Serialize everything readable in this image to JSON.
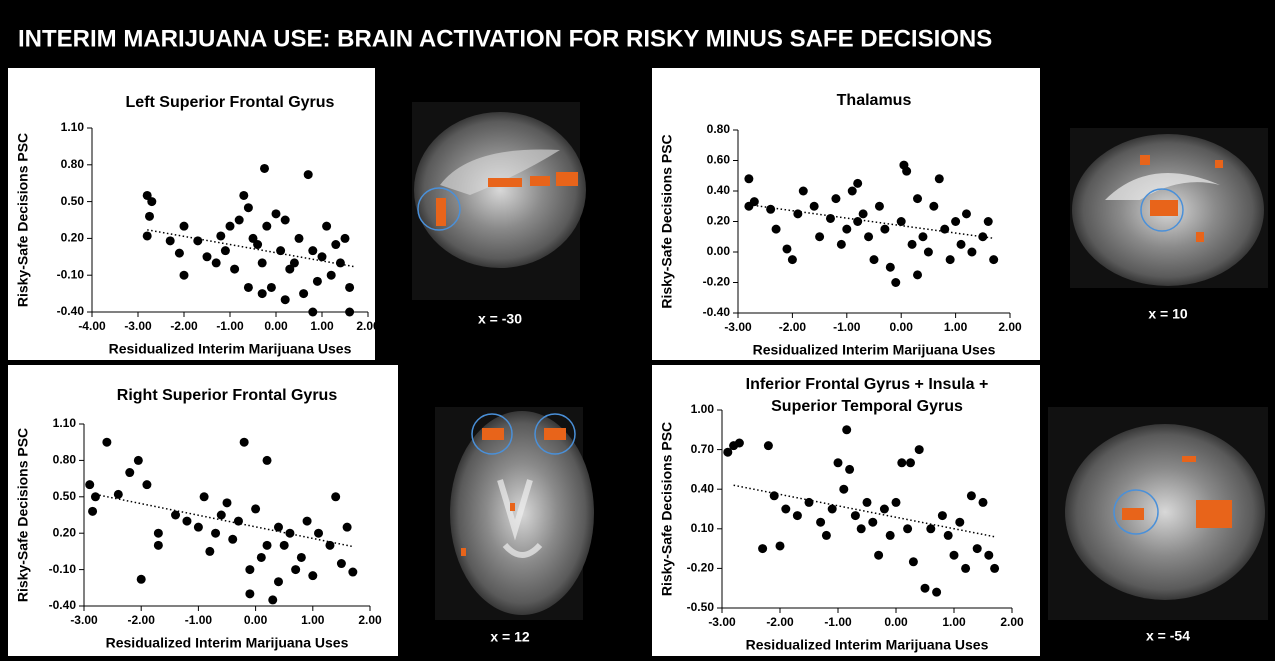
{
  "title": "INTERIM MARIJUANA USE: BRAIN ACTIVATION FOR RISKY MINUS SAFE DECISIONS",
  "chart_data": [
    {
      "type": "scatter",
      "title": "Left Superior Frontal Gyrus",
      "ylabel": "Risky-Safe Decisions PSC",
      "xlabel": "Residualized Interim Marijuana Uses",
      "color": "#000000",
      "xlim": [
        -4,
        2
      ],
      "xticks": [
        {
          "value": -4,
          "label": "-4.00"
        },
        {
          "value": -3,
          "label": "-3.00"
        },
        {
          "value": -2,
          "label": "-2.00"
        },
        {
          "value": -1,
          "label": "-1.00"
        },
        {
          "value": 0,
          "label": "0.00"
        },
        {
          "value": 1,
          "label": "1.00"
        },
        {
          "value": 2,
          "label": "2.00"
        }
      ],
      "ylim": [
        -0.4,
        1.1
      ],
      "yticks": [
        {
          "value": -0.4,
          "label": "-0.40"
        },
        {
          "value": -0.1,
          "label": "-0.10"
        },
        {
          "value": 0.2,
          "label": "0.20"
        },
        {
          "value": 0.5,
          "label": "0.50"
        },
        {
          "value": 0.8,
          "label": "0.80"
        },
        {
          "value": 1.1,
          "label": "1.10"
        }
      ],
      "x": [
        -2.8,
        -2.7,
        -2.8,
        -2.75,
        -2.3,
        -2.1,
        -2.0,
        -2.0,
        -1.7,
        -1.5,
        -1.3,
        -1.2,
        -1.1,
        -1.0,
        -0.9,
        -0.8,
        -0.7,
        -0.6,
        -0.5,
        -0.4,
        -0.3,
        -0.2,
        -0.1,
        0.0,
        0.1,
        0.2,
        0.3,
        0.4,
        0.5,
        0.6,
        0.7,
        0.8,
        0.9,
        1.0,
        1.1,
        1.2,
        1.3,
        1.4,
        1.5,
        1.6,
        -0.25,
        1.6,
        0.8,
        -0.6,
        -0.3,
        0.2
      ],
      "values": [
        0.55,
        0.5,
        0.22,
        0.38,
        0.18,
        0.08,
        0.3,
        -0.1,
        0.18,
        0.05,
        0.0,
        0.22,
        0.1,
        0.3,
        -0.05,
        0.35,
        0.55,
        0.45,
        0.2,
        0.15,
        0.0,
        0.3,
        -0.2,
        0.4,
        0.1,
        0.35,
        -0.05,
        0.0,
        0.2,
        -0.25,
        0.72,
        0.1,
        -0.15,
        0.05,
        0.3,
        -0.1,
        0.15,
        0.0,
        0.2,
        -0.4,
        0.77,
        -0.2,
        -0.4,
        -0.2,
        -0.25,
        -0.3
      ],
      "trendline": {
        "x": [
          -2.8,
          1.7
        ],
        "values": [
          0.27,
          -0.03
        ]
      }
    },
    {
      "type": "scatter",
      "title": "Thalamus",
      "ylabel": "Risky-Safe Decisions PSC",
      "xlabel": "Residualized Interim Marijuana Uses",
      "color": "#000000",
      "xlim": [
        -3,
        2
      ],
      "xticks": [
        {
          "value": -3,
          "label": "-3.00"
        },
        {
          "value": -2,
          "label": "-2.00"
        },
        {
          "value": -1,
          "label": "-1.00"
        },
        {
          "value": 0,
          "label": "0.00"
        },
        {
          "value": 1,
          "label": "1.00"
        },
        {
          "value": 2,
          "label": "2.00"
        }
      ],
      "ylim": [
        -0.4,
        0.8
      ],
      "yticks": [
        {
          "value": -0.4,
          "label": "-0.40"
        },
        {
          "value": -0.2,
          "label": "-0.20"
        },
        {
          "value": 0,
          "label": "0.00"
        },
        {
          "value": 0.2,
          "label": "0.20"
        },
        {
          "value": 0.4,
          "label": "0.40"
        },
        {
          "value": 0.6,
          "label": "0.60"
        },
        {
          "value": 0.8,
          "label": "0.80"
        }
      ],
      "x": [
        -2.8,
        -2.8,
        -2.7,
        -2.4,
        -2.3,
        -2.1,
        -2.0,
        -1.9,
        -1.8,
        -1.6,
        -1.5,
        -1.3,
        -1.2,
        -1.1,
        -1.0,
        -0.9,
        -0.8,
        -0.7,
        -0.6,
        -0.5,
        -0.4,
        -0.3,
        -0.2,
        -0.1,
        0.0,
        0.05,
        0.1,
        0.2,
        0.3,
        0.4,
        0.5,
        0.6,
        0.7,
        0.8,
        0.9,
        1.0,
        1.1,
        1.2,
        1.3,
        1.5,
        1.6,
        1.7,
        -0.8,
        0.3
      ],
      "values": [
        0.48,
        0.3,
        0.33,
        0.28,
        0.15,
        0.02,
        -0.05,
        0.25,
        0.4,
        0.3,
        0.1,
        0.22,
        0.35,
        0.05,
        0.15,
        0.4,
        0.2,
        0.25,
        0.1,
        -0.05,
        0.3,
        0.15,
        -0.1,
        -0.2,
        0.2,
        0.57,
        0.53,
        0.05,
        0.35,
        0.1,
        0.0,
        0.3,
        0.48,
        0.15,
        -0.05,
        0.2,
        0.05,
        0.25,
        0.0,
        0.1,
        0.2,
        -0.05,
        0.45,
        -0.15
      ],
      "trendline": {
        "x": [
          -2.8,
          1.7
        ],
        "values": [
          0.31,
          0.09
        ]
      }
    },
    {
      "type": "scatter",
      "title": "Right Superior Frontal Gyrus",
      "ylabel": "Risky-Safe Decisions PSC",
      "xlabel": "Residualized Interim Marijuana Uses",
      "color": "#000000",
      "xlim": [
        -3,
        2
      ],
      "xticks": [
        {
          "value": -3,
          "label": "-3.00"
        },
        {
          "value": -2,
          "label": "-2.00"
        },
        {
          "value": -1,
          "label": "-1.00"
        },
        {
          "value": 0,
          "label": "0.00"
        },
        {
          "value": 1,
          "label": "1.00"
        },
        {
          "value": 2,
          "label": "2.00"
        }
      ],
      "ylim": [
        -0.4,
        1.1
      ],
      "yticks": [
        {
          "value": -0.4,
          "label": "-0.40"
        },
        {
          "value": -0.1,
          "label": "-0.10"
        },
        {
          "value": 0.2,
          "label": "0.20"
        },
        {
          "value": 0.5,
          "label": "0.50"
        },
        {
          "value": 0.8,
          "label": "0.80"
        },
        {
          "value": 1.1,
          "label": "1.10"
        }
      ],
      "x": [
        -2.9,
        -2.85,
        -2.8,
        -2.6,
        -2.4,
        -2.2,
        -2.05,
        -2.0,
        -1.9,
        -1.7,
        -1.7,
        -1.4,
        -1.2,
        -1.0,
        -0.9,
        -0.8,
        -0.7,
        -0.6,
        -0.5,
        -0.4,
        -0.3,
        -0.2,
        -0.1,
        0.0,
        0.1,
        0.2,
        0.3,
        0.4,
        0.5,
        0.6,
        0.7,
        0.8,
        0.9,
        1.0,
        1.1,
        1.3,
        1.4,
        1.5,
        1.6,
        1.7,
        0.2,
        -0.1,
        0.4
      ],
      "values": [
        0.6,
        0.38,
        0.5,
        0.95,
        0.52,
        0.7,
        0.8,
        -0.18,
        0.6,
        0.1,
        0.2,
        0.35,
        0.3,
        0.25,
        0.5,
        0.05,
        0.2,
        0.35,
        0.45,
        0.15,
        0.3,
        0.95,
        -0.1,
        0.4,
        0.0,
        0.1,
        -0.35,
        0.25,
        0.1,
        0.2,
        -0.1,
        0.0,
        0.3,
        -0.15,
        0.2,
        0.1,
        0.5,
        -0.05,
        0.25,
        -0.12,
        0.8,
        -0.3,
        -0.2
      ],
      "trendline": {
        "x": [
          -2.8,
          1.7
        ],
        "values": [
          0.52,
          0.09
        ]
      }
    },
    {
      "type": "scatter",
      "title": [
        "Inferior Frontal Gyrus + Insula +",
        "Superior Temporal Gyrus"
      ],
      "ylabel": "Risky-Safe Decisions PSC",
      "xlabel": "Residualized Interim Marijuana Uses",
      "color": "#000000",
      "xlim": [
        -3,
        2
      ],
      "xticks": [
        {
          "value": -3,
          "label": "-3.00"
        },
        {
          "value": -2,
          "label": "-2.00"
        },
        {
          "value": -1,
          "label": "-1.00"
        },
        {
          "value": 0,
          "label": "0.00"
        },
        {
          "value": 1,
          "label": "1.00"
        },
        {
          "value": 2,
          "label": "2.00"
        }
      ],
      "ylim": [
        -0.5,
        1.0
      ],
      "yticks": [
        {
          "value": -0.5,
          "label": "-0.50"
        },
        {
          "value": -0.2,
          "label": "-0.20"
        },
        {
          "value": 0.1,
          "label": "0.10"
        },
        {
          "value": 0.4,
          "label": "0.40"
        },
        {
          "value": 0.7,
          "label": "0.70"
        },
        {
          "value": 1.0,
          "label": "1.00"
        }
      ],
      "x": [
        -2.9,
        -2.8,
        -2.7,
        -2.2,
        -2.3,
        -2.1,
        -2.0,
        -1.9,
        -1.7,
        -1.5,
        -1.3,
        -1.2,
        -1.1,
        -1.0,
        -0.9,
        -0.8,
        -0.7,
        -0.6,
        -0.5,
        -0.4,
        -0.3,
        -0.2,
        -0.1,
        0.0,
        0.1,
        0.2,
        0.3,
        0.4,
        0.5,
        0.6,
        0.7,
        0.8,
        0.9,
        1.0,
        1.1,
        1.2,
        1.3,
        1.4,
        1.5,
        1.6,
        1.7,
        -0.85,
        0.25
      ],
      "values": [
        0.68,
        0.73,
        0.75,
        0.73,
        -0.05,
        0.35,
        -0.03,
        0.25,
        0.2,
        0.3,
        0.15,
        0.05,
        0.25,
        0.6,
        0.4,
        0.55,
        0.2,
        0.1,
        0.3,
        0.15,
        -0.1,
        0.25,
        0.05,
        0.3,
        0.6,
        0.1,
        -0.15,
        0.7,
        -0.35,
        0.1,
        -0.38,
        0.2,
        0.05,
        -0.1,
        0.15,
        -0.2,
        0.35,
        -0.05,
        0.3,
        -0.1,
        -0.2,
        0.85,
        0.6
      ],
      "trendline": {
        "x": [
          -2.8,
          1.7
        ],
        "values": [
          0.43,
          0.04
        ]
      }
    }
  ],
  "images": [
    {
      "label": "x = -30"
    },
    {
      "label": "x = 10"
    },
    {
      "label": "x = 12"
    },
    {
      "label": "x = -54"
    }
  ]
}
